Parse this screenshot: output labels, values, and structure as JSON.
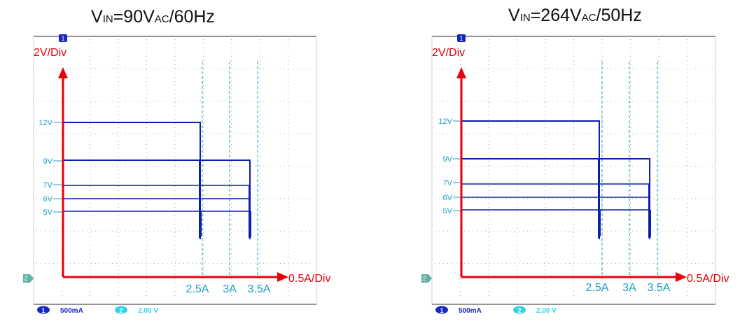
{
  "colors": {
    "red_axis": "#e8000b",
    "trace": "#0b1fa8",
    "cyan": "#1ba0c2",
    "grid": "#8c8c8c",
    "frame": "#2a2a2a",
    "badge1": "#1727c4",
    "badge2": "#2fd5e6"
  },
  "chart_data": [
    {
      "type": "line",
      "title_parts": {
        "v": "V",
        "in": "IN",
        "mid": "=90V",
        "ac": "AC",
        "tail": "/60Hz"
      },
      "ylabel": "2V/Div",
      "xlabel": "0.5A/Div",
      "channel1_marker": "1",
      "channel2_marker": "2",
      "voltage_labels": [
        "12V",
        "9V",
        "7V",
        "6V",
        "5V"
      ],
      "current_labels": [
        "2.5A",
        "3A",
        "3.5A"
      ],
      "current_markers": [
        2.5,
        3.0,
        3.5
      ],
      "series": [
        {
          "voltage": 12,
          "cutoff_current": 2.5
        },
        {
          "voltage": 9,
          "cutoff_current": 3.4
        },
        {
          "voltage": 7,
          "cutoff_current": 3.4
        },
        {
          "voltage": 6,
          "cutoff_current": 3.4
        },
        {
          "voltage": 5,
          "cutoff_current": 3.4
        }
      ],
      "status": {
        "ch1": "1",
        "ch1_scale": "500mA",
        "ch2": "2",
        "ch2_scale": "2.00 V"
      }
    },
    {
      "type": "line",
      "title_parts": {
        "v": "V",
        "in": "IN",
        "mid": "=264V",
        "ac": "AC",
        "tail": "/50Hz"
      },
      "ylabel": "2V/Div",
      "xlabel": "0.5A/Div",
      "channel1_marker": "1",
      "channel2_marker": "2",
      "voltage_labels": [
        "12V",
        "9V",
        "7V",
        "6V",
        "5V"
      ],
      "current_labels": [
        "2.5A",
        "3A",
        "3.5A"
      ],
      "current_markers": [
        2.5,
        3.0,
        3.5
      ],
      "series": [
        {
          "voltage": 12,
          "cutoff_current": 2.5
        },
        {
          "voltage": 9,
          "cutoff_current": 3.4
        },
        {
          "voltage": 7,
          "cutoff_current": 3.4
        },
        {
          "voltage": 6,
          "cutoff_current": 3.4
        },
        {
          "voltage": 5,
          "cutoff_current": 3.4
        }
      ],
      "status": {
        "ch1": "1",
        "ch1_scale": "500mA",
        "ch2": "2",
        "ch2_scale": "2.00 V"
      }
    }
  ]
}
